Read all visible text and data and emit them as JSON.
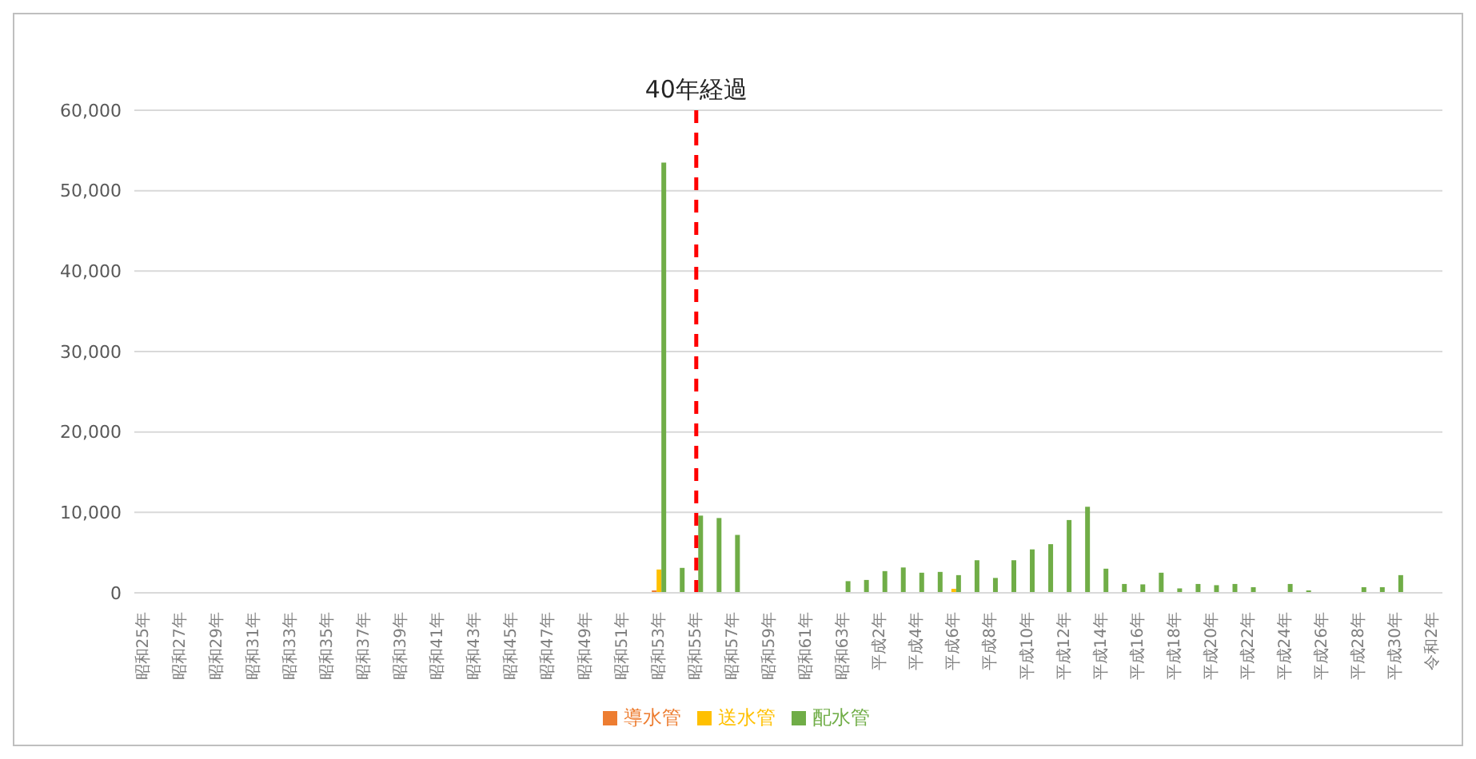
{
  "chart_data": {
    "type": "bar",
    "categories": [
      "昭和25年",
      null,
      "昭和27年",
      null,
      "昭和29年",
      null,
      "昭和31年",
      null,
      "昭和33年",
      null,
      "昭和35年",
      null,
      "昭和37年",
      null,
      "昭和39年",
      null,
      "昭和41年",
      null,
      "昭和43年",
      null,
      "昭和45年",
      null,
      "昭和47年",
      null,
      "昭和49年",
      null,
      "昭和51年",
      null,
      "昭和53年",
      null,
      "昭和55年",
      null,
      "昭和57年",
      null,
      "昭和59年",
      null,
      "昭和61年",
      null,
      "昭和63年",
      null,
      "平成2年",
      null,
      "平成4年",
      null,
      "平成6年",
      null,
      "平成8年",
      null,
      "平成10年",
      null,
      "平成12年",
      null,
      "平成14年",
      null,
      "平成16年",
      null,
      "平成18年",
      null,
      "平成20年",
      null,
      "平成22年",
      null,
      "平成24年",
      null,
      "平成26年",
      null,
      "平成28年",
      null,
      "平成30年",
      null,
      "令和2年"
    ],
    "series": [
      {
        "name": "導水管",
        "color": "#ed7d31",
        "values": [
          null,
          null,
          null,
          null,
          null,
          null,
          null,
          null,
          null,
          null,
          null,
          null,
          null,
          null,
          null,
          null,
          null,
          null,
          null,
          null,
          null,
          null,
          null,
          null,
          null,
          null,
          null,
          null,
          300,
          null,
          null,
          null,
          null,
          null,
          null,
          null,
          null,
          null,
          null,
          null,
          null,
          null,
          null,
          null,
          null,
          null,
          null,
          null,
          null,
          null,
          null,
          null,
          null,
          null,
          null,
          null,
          null,
          null,
          null,
          null,
          null,
          null,
          null,
          null,
          null,
          null,
          null,
          null,
          null,
          null,
          null
        ]
      },
      {
        "name": "送水管",
        "color": "#ffc000",
        "values": [
          null,
          null,
          null,
          null,
          null,
          null,
          null,
          null,
          null,
          null,
          null,
          null,
          null,
          null,
          null,
          null,
          null,
          null,
          null,
          null,
          null,
          null,
          null,
          null,
          null,
          null,
          null,
          null,
          2900,
          null,
          null,
          null,
          null,
          null,
          null,
          null,
          null,
          null,
          null,
          null,
          null,
          null,
          null,
          null,
          500,
          null,
          null,
          null,
          null,
          null,
          null,
          null,
          null,
          null,
          null,
          null,
          null,
          null,
          null,
          null,
          null,
          null,
          null,
          null,
          null,
          null,
          null,
          null,
          null,
          null,
          null
        ]
      },
      {
        "name": "配水管",
        "color": "#70ad47",
        "values": [
          null,
          null,
          null,
          null,
          null,
          null,
          null,
          null,
          null,
          null,
          null,
          null,
          null,
          null,
          null,
          null,
          null,
          null,
          null,
          null,
          null,
          null,
          null,
          null,
          null,
          null,
          null,
          null,
          53500,
          3100,
          9600,
          9300,
          7200,
          null,
          null,
          null,
          null,
          null,
          1450,
          1600,
          2700,
          3150,
          2500,
          2600,
          2200,
          4050,
          1850,
          4050,
          5400,
          6050,
          9050,
          10700,
          3000,
          1100,
          1050,
          2500,
          550,
          1100,
          950,
          1100,
          700,
          null,
          1100,
          300,
          null,
          null,
          700,
          700,
          2200,
          null,
          null
        ]
      }
    ],
    "ylim": [
      0,
      60000
    ],
    "yticks": [
      0,
      {
        "value": 10000,
        "label": "10,000"
      },
      {
        "value": 20000,
        "label": "20,000"
      },
      {
        "value": 30000,
        "label": "30,000"
      },
      {
        "value": 40000,
        "label": "40,000"
      },
      {
        "value": 50000,
        "label": "50,000"
      },
      {
        "value": 60000,
        "label": "60,000"
      }
    ],
    "grid": "y",
    "legend": "bottom",
    "ref_lines": [
      {
        "axis": "x",
        "value": "昭和55年",
        "label": "40年経過",
        "color": "#ff0000",
        "line_style": "dashed"
      }
    ]
  }
}
